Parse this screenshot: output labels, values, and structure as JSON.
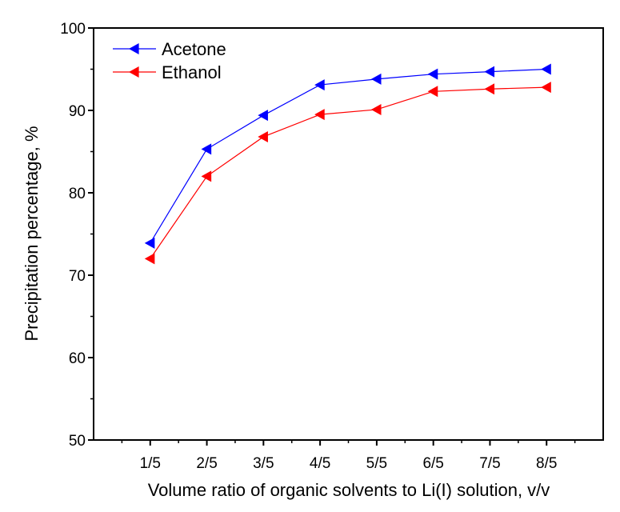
{
  "chart_data": {
    "type": "line",
    "title": "",
    "xlabel": "Volume ratio of organic solvents to Li(I) solution, v/v",
    "ylabel": "Precipitation percentage, %",
    "categories": [
      "1/5",
      "2/5",
      "3/5",
      "4/5",
      "5/5",
      "6/5",
      "7/5",
      "8/5"
    ],
    "ylim": [
      50,
      100
    ],
    "yticks": [
      "50",
      "60",
      "70",
      "80",
      "90",
      "100"
    ],
    "grid": false,
    "legend_position": "top-left",
    "series": [
      {
        "name": "Acetone",
        "color": "#0000ff",
        "marker": "left-triangle",
        "values": [
          73.9,
          85.3,
          89.4,
          93.1,
          93.8,
          94.4,
          94.7,
          95.0
        ]
      },
      {
        "name": "Ethanol",
        "color": "#ff0000",
        "marker": "left-triangle",
        "values": [
          72.0,
          82.0,
          86.8,
          89.5,
          90.1,
          92.3,
          92.6,
          92.8
        ]
      }
    ]
  }
}
